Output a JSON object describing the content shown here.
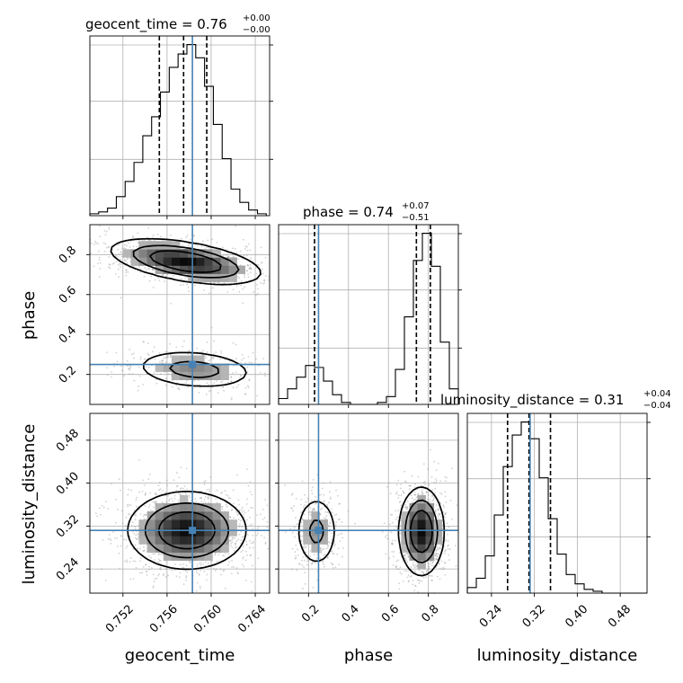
{
  "chart_data": {
    "type": "corner",
    "parameters": [
      "geocent_time",
      "phase",
      "luminosity_distance"
    ],
    "truth": {
      "geocent_time": 0.7583,
      "phase": 0.25,
      "luminosity_distance": 0.312
    },
    "titles": [
      {
        "name": "geocent_time",
        "value": "0.76",
        "plus": "+0.00",
        "minus": "−0.00"
      },
      {
        "name": "phase",
        "value": "0.74",
        "plus": "+0.07",
        "minus": "−0.51"
      },
      {
        "name": "luminosity_distance",
        "value": "0.31",
        "plus": "+0.04",
        "minus": "−0.04"
      }
    ],
    "axis_ticks": {
      "geocent_time": [
        "0.752",
        "0.756",
        "0.760",
        "0.764"
      ],
      "phase_x": [
        "0.2",
        "0.4",
        "0.6",
        "0.8"
      ],
      "phase_y": [
        "0.2",
        "0.4",
        "0.6",
        "0.8"
      ],
      "luminosity_distance_x": [
        "0.24",
        "0.32",
        "0.40",
        "0.48"
      ],
      "luminosity_distance_y": [
        "0.24",
        "0.32",
        "0.40",
        "0.48"
      ]
    },
    "ranges": {
      "geocent_time": [
        0.749,
        0.7653
      ],
      "phase": [
        0.05,
        0.95
      ],
      "luminosity_distance": [
        0.195,
        0.53
      ]
    },
    "quantiles": {
      "geocent_time": [
        0.7553,
        0.7575,
        0.7596
      ],
      "phase": [
        0.23,
        0.74,
        0.81
      ],
      "luminosity_distance": [
        0.27,
        0.31,
        0.35
      ]
    },
    "histograms": {
      "geocent_time": {
        "edges": [
          0.749,
          0.7498,
          0.7506,
          0.7514,
          0.7522,
          0.753,
          0.7538,
          0.7546,
          0.7554,
          0.7562,
          0.757,
          0.7578,
          0.7586,
          0.7594,
          0.7602,
          0.761,
          0.7618,
          0.7626,
          0.7634,
          0.7642,
          0.765
        ],
        "counts": [
          1,
          2,
          4,
          10,
          18,
          28,
          42,
          52,
          65,
          78,
          85,
          90,
          83,
          68,
          48,
          30,
          14,
          7,
          3,
          1
        ]
      },
      "phase": {
        "edges": [
          0.05,
          0.095,
          0.14,
          0.185,
          0.23,
          0.275,
          0.32,
          0.365,
          0.41,
          0.455,
          0.5,
          0.545,
          0.59,
          0.635,
          0.68,
          0.725,
          0.77,
          0.815,
          0.86,
          0.905,
          0.95
        ],
        "counts": [
          3,
          8,
          14,
          20,
          19,
          12,
          5,
          1,
          0,
          0,
          0,
          1,
          4,
          18,
          45,
          74,
          88,
          71,
          32,
          8
        ]
      },
      "luminosity_distance": {
        "edges": [
          0.195,
          0.2118,
          0.2285,
          0.2453,
          0.262,
          0.2788,
          0.2955,
          0.3123,
          0.329,
          0.3458,
          0.3625,
          0.3793,
          0.396,
          0.4128,
          0.4295,
          0.4463,
          0.463,
          0.4798,
          0.4965,
          0.5133,
          0.53
        ],
        "counts": [
          3,
          8,
          20,
          42,
          68,
          85,
          92,
          83,
          62,
          40,
          21,
          10,
          5,
          2,
          1,
          0,
          0,
          0,
          0,
          0
        ]
      }
    },
    "gaussians_2d": {
      "geocent_time__phase": [
        {
          "mx": 0.7577,
          "my": 0.765,
          "sx": 0.0033,
          "sy": 0.055,
          "rho": -0.5,
          "w": 0.73
        },
        {
          "mx": 0.7585,
          "my": 0.225,
          "sx": 0.0028,
          "sy": 0.05,
          "rho": -0.2,
          "w": 0.27
        }
      ],
      "geocent_time__luminosity_distance": [
        {
          "mx": 0.7578,
          "my": 0.312,
          "sx": 0.0026,
          "sy": 0.035,
          "rho": 0.0,
          "w": 1.0
        }
      ],
      "phase__luminosity_distance": [
        {
          "mx": 0.24,
          "my": 0.31,
          "sx": 0.055,
          "sy": 0.035,
          "rho": 0.0,
          "w": 0.27
        },
        {
          "mx": 0.765,
          "my": 0.31,
          "sx": 0.055,
          "sy": 0.04,
          "rho": 0.0,
          "w": 0.73
        }
      ]
    }
  }
}
